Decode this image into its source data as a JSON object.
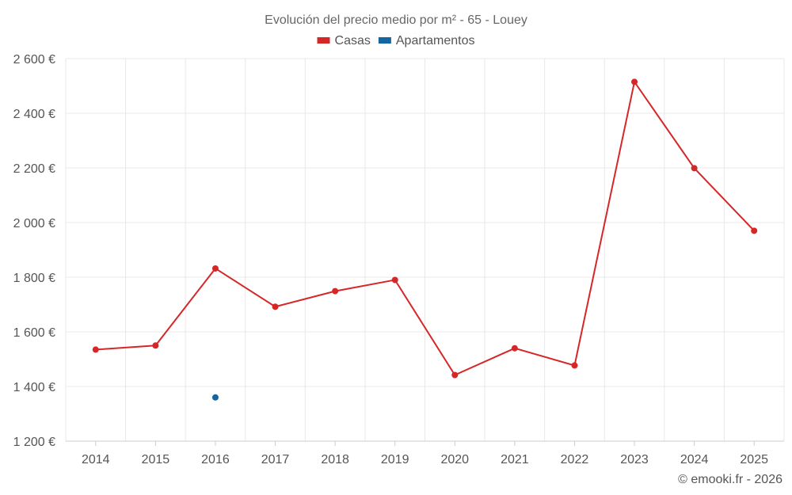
{
  "chart_data": {
    "type": "line",
    "title": "Evolución del precio medio por m² - 65 - Louey",
    "categories": [
      "2014",
      "2015",
      "2016",
      "2017",
      "2018",
      "2019",
      "2020",
      "2021",
      "2022",
      "2023",
      "2024",
      "2025"
    ],
    "series": [
      {
        "name": "Casas",
        "color": "#d62728",
        "values": [
          1535,
          1550,
          1832,
          1692,
          1749,
          1790,
          1442,
          1540,
          1477,
          2515,
          2199,
          1970
        ]
      },
      {
        "name": "Apartamentos",
        "color": "#1565a0",
        "values": [
          null,
          null,
          1360,
          null,
          null,
          null,
          null,
          null,
          null,
          null,
          null,
          null
        ]
      }
    ],
    "ylim": [
      1200,
      2600
    ],
    "yticks": [
      1200,
      1400,
      1600,
      1800,
      2000,
      2200,
      2400,
      2600
    ],
    "ytick_labels": [
      "1 200 €",
      "1 400 €",
      "1 600 €",
      "1 800 €",
      "2 000 €",
      "2 200 €",
      "2 400 €",
      "2 600 €"
    ],
    "grid": true,
    "legend": "top-center",
    "xlabel": "",
    "ylabel": ""
  },
  "credit": "© emooki.fr - 2026"
}
